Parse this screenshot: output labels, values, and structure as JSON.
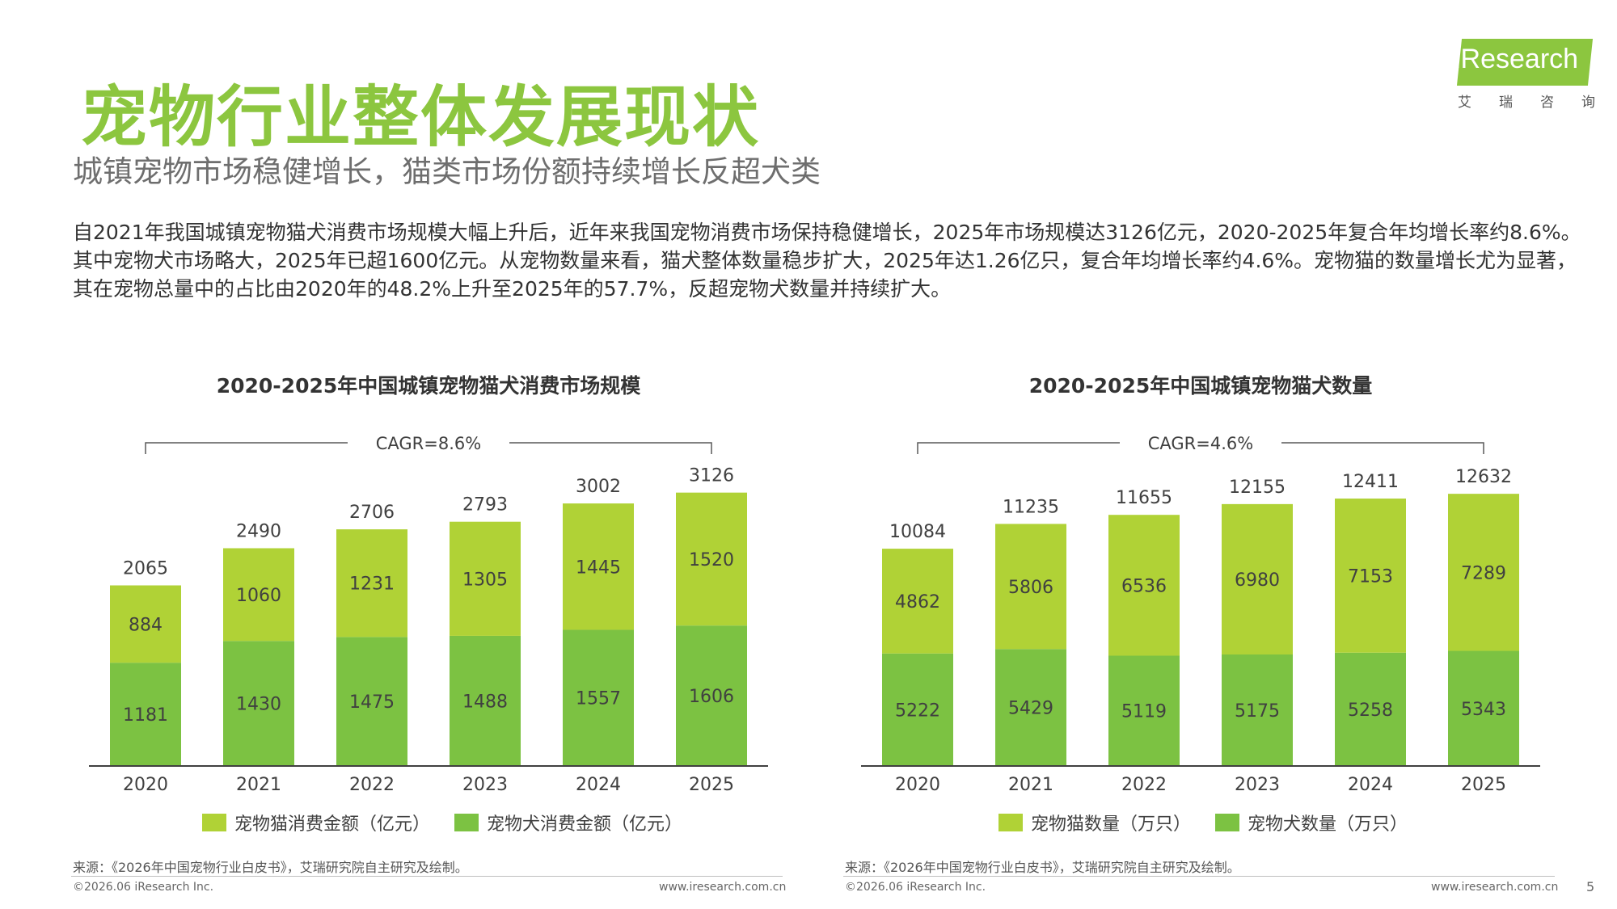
{
  "header": {
    "title": "宠物行业整体发展现状",
    "subtitle": "城镇宠物市场稳健增长，猫类市场份额持续增长反超犬类"
  },
  "logo": {
    "text": "iResearch",
    "cn": [
      "艾",
      "瑞",
      "咨",
      "询"
    ]
  },
  "intro": [
    "自2021年我国城镇宠物猫犬消费市场规模大幅上升后，近年来我国宠物消费市场保持稳健增长，2025年市场规模达3126亿元，2020-2025年复合年均增长率约8.6%。",
    "其中宠物犬市场略大，2025年已超1600亿元。从宠物数量来看，猫犬整体数量稳步扩大，2025年达1.26亿只，复合年均增长率约4.6%。宠物猫的数量增长尤为显著，",
    "其在宠物总量中的占比由2020年的48.2%上升至2025年的57.7%，反超宠物犬数量并持续扩大。"
  ],
  "colors": {
    "accent": "#8cc63f",
    "cat": "#b0d236",
    "dog": "#7cc242"
  },
  "chart_data": [
    {
      "type": "bar",
      "stacked": true,
      "title": "2020-2025年中国城镇宠物猫犬消费市场规模",
      "categories": [
        "2020",
        "2021",
        "2022",
        "2023",
        "2024",
        "2025"
      ],
      "series": [
        {
          "name": "宠物犬消费金额（亿元）",
          "values": [
            1181,
            1430,
            1475,
            1488,
            1557,
            1606
          ]
        },
        {
          "name": "宠物猫消费金额（亿元）",
          "values": [
            884,
            1060,
            1231,
            1305,
            1445,
            1520
          ]
        }
      ],
      "totals": [
        2065,
        2490,
        2706,
        2793,
        3002,
        3126
      ],
      "annotation": "CAGR=8.6%",
      "ylim": [
        0,
        3400
      ],
      "legend": [
        "宠物猫消费金额（亿元）",
        "宠物犬消费金额（亿元）"
      ],
      "legend_position": "bottom"
    },
    {
      "type": "bar",
      "stacked": true,
      "title": "2020-2025年中国城镇宠物猫犬数量",
      "categories": [
        "2020",
        "2021",
        "2022",
        "2023",
        "2024",
        "2025"
      ],
      "series": [
        {
          "name": "宠物犬数量（万只）",
          "values": [
            5222,
            5429,
            5119,
            5175,
            5258,
            5343
          ]
        },
        {
          "name": "宠物猫数量（万只）",
          "values": [
            4862,
            5806,
            6536,
            6980,
            7153,
            7289
          ]
        }
      ],
      "totals": [
        10084,
        11235,
        11655,
        12155,
        12411,
        12632
      ],
      "annotation": "CAGR=4.6%",
      "ylim": [
        0,
        13800
      ],
      "legend": [
        "宠物猫数量（万只）",
        "宠物犬数量（万只）"
      ],
      "legend_position": "bottom"
    }
  ],
  "footer": {
    "source": "来源：《2026年中国宠物行业白皮书》，艾瑞研究院自主研究及绘制。",
    "copyright": "©2026.06 iResearch Inc.",
    "site": "www.iresearch.com.cn",
    "page": "5"
  }
}
